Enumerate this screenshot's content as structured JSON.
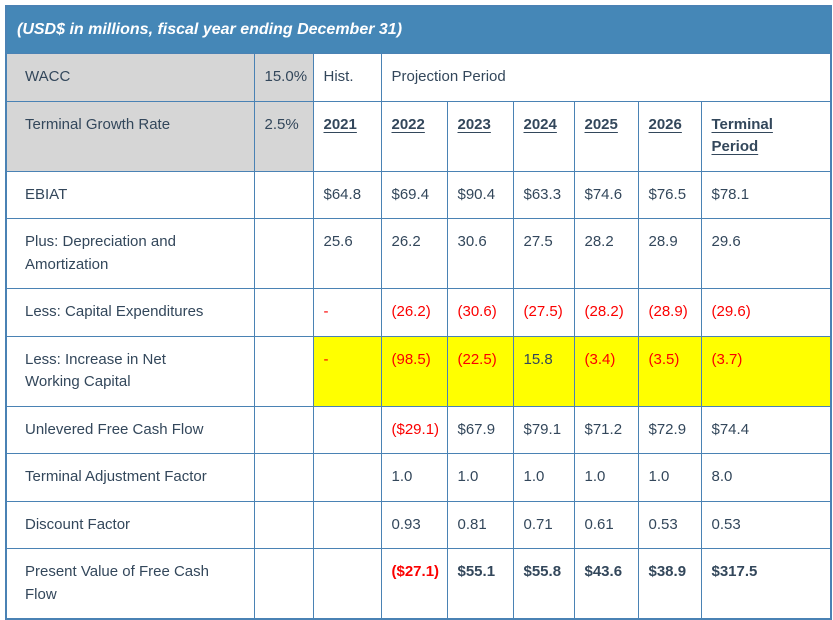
{
  "title": "(USD$ in millions, fiscal year ending December 31)",
  "colors": {
    "header_bg": "#4587B7",
    "border": "#4A82B4",
    "text": "#33475B",
    "gray_bg": "#D6D6D6",
    "negative_red": "#FB0000",
    "highlight_yellow": "#FFFF00",
    "white": "#FFFFFF"
  },
  "assumptions": {
    "wacc_label": "WACC",
    "wacc_value": "15.0%",
    "terminal_growth_label": "Terminal Growth Rate",
    "terminal_growth_value": "2.5%"
  },
  "headers": {
    "hist": "Hist.",
    "projection": "Projection Period",
    "years": [
      "2021",
      "2022",
      "2023",
      "2024",
      "2025",
      "2026",
      "Terminal Period"
    ]
  },
  "rows": [
    {
      "label": "EBIAT",
      "values": [
        "$64.8",
        "$69.4",
        "$90.4",
        "$63.3",
        "$74.6",
        "$76.5",
        "$78.1"
      ],
      "highlight": false,
      "emphasis": false
    },
    {
      "label": "Plus: Depreciation and Amortization",
      "values": [
        "25.6",
        "26.2",
        "30.6",
        "27.5",
        "28.2",
        "28.9",
        "29.6"
      ],
      "highlight": false,
      "emphasis": false
    },
    {
      "label": "Less: Capital Expenditures",
      "values": [
        "-",
        "(26.2)",
        "(30.6)",
        "(27.5)",
        "(28.2)",
        "(28.9)",
        "(29.6)"
      ],
      "highlight": false,
      "emphasis": false
    },
    {
      "label": "Less: Increase in Net Working Capital",
      "values": [
        "-",
        "(98.5)",
        "(22.5)",
        "15.8",
        "(3.4)",
        "(3.5)",
        "(3.7)"
      ],
      "highlight": true,
      "emphasis": false
    },
    {
      "label": "Unlevered Free Cash Flow",
      "values": [
        "",
        "($29.1)",
        "$67.9",
        "$79.1",
        "$71.2",
        "$72.9",
        "$74.4"
      ],
      "highlight": false,
      "emphasis": false
    },
    {
      "label": "Terminal Adjustment Factor",
      "values": [
        "",
        "1.0",
        "1.0",
        "1.0",
        "1.0",
        "1.0",
        "8.0"
      ],
      "highlight": false,
      "emphasis": false
    },
    {
      "label": "Discount Factor",
      "values": [
        "",
        "0.93",
        "0.81",
        "0.71",
        "0.61",
        "0.53",
        "0.53"
      ],
      "highlight": false,
      "emphasis": false
    },
    {
      "label": "Present Value of Free Cash Flow",
      "values": [
        "",
        "($27.1)",
        "$55.1",
        "$55.8",
        "$43.6",
        "$38.9",
        "$317.5"
      ],
      "highlight": false,
      "emphasis": true
    }
  ],
  "chart_data": {
    "type": "table",
    "title": "(USD$ in millions, fiscal year ending December 31)",
    "assumptions": {
      "WACC": "15.0%",
      "Terminal Growth Rate": "2.5%"
    },
    "columns": [
      "2021 (Hist.)",
      "2022",
      "2023",
      "2024",
      "2025",
      "2026",
      "Terminal Period"
    ],
    "rows": [
      {
        "label": "EBIAT",
        "values": [
          64.8,
          69.4,
          90.4,
          63.3,
          74.6,
          76.5,
          78.1
        ]
      },
      {
        "label": "Plus: Depreciation and Amortization",
        "values": [
          25.6,
          26.2,
          30.6,
          27.5,
          28.2,
          28.9,
          29.6
        ]
      },
      {
        "label": "Less: Capital Expenditures",
        "values": [
          null,
          -26.2,
          -30.6,
          -27.5,
          -28.2,
          -28.9,
          -29.6
        ]
      },
      {
        "label": "Less: Increase in Net Working Capital",
        "values": [
          null,
          -98.5,
          -22.5,
          15.8,
          -3.4,
          -3.5,
          -3.7
        ],
        "highlighted": true
      },
      {
        "label": "Unlevered Free Cash Flow",
        "values": [
          null,
          -29.1,
          67.9,
          79.1,
          71.2,
          72.9,
          74.4
        ]
      },
      {
        "label": "Terminal Adjustment Factor",
        "values": [
          null,
          1.0,
          1.0,
          1.0,
          1.0,
          1.0,
          8.0
        ]
      },
      {
        "label": "Discount Factor",
        "values": [
          null,
          0.93,
          0.81,
          0.71,
          0.61,
          0.53,
          0.53
        ]
      },
      {
        "label": "Present Value of Free Cash Flow",
        "values": [
          null,
          -27.1,
          55.1,
          55.8,
          43.6,
          38.9,
          317.5
        ]
      }
    ]
  }
}
